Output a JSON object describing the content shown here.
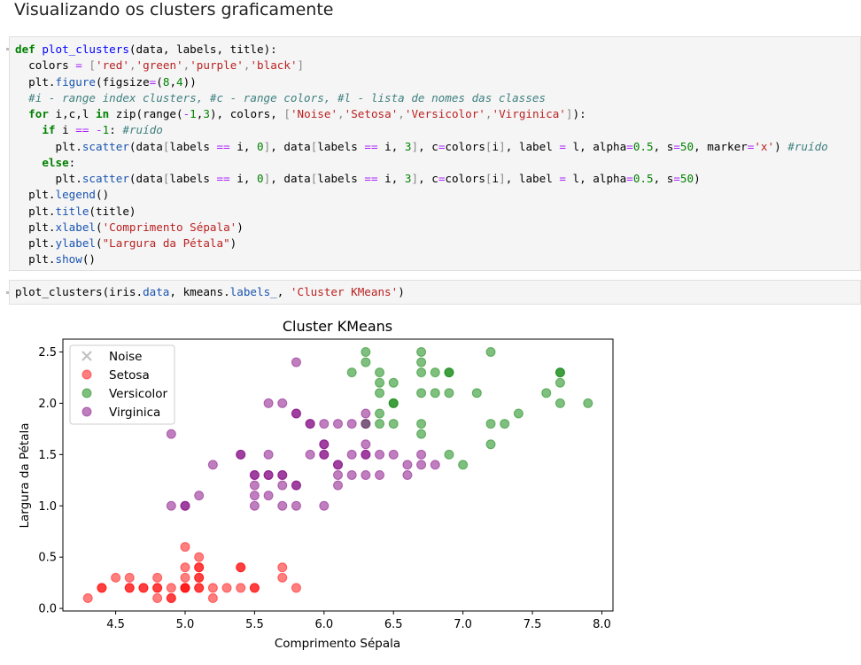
{
  "heading": "Visualizando os clusters graficamente",
  "cell1": {
    "lines": [
      [
        [
          "kw",
          "def "
        ],
        [
          "fn",
          "plot_clusters"
        ],
        [
          "",
          "(data, labels, title):"
        ]
      ],
      [
        [
          "",
          "  colors "
        ],
        [
          "op",
          "="
        ],
        [
          "br",
          " ["
        ],
        [
          "str",
          "'red'"
        ],
        [
          "br",
          ","
        ],
        [
          "str",
          "'green'"
        ],
        [
          "br",
          ","
        ],
        [
          "str",
          "'purple'"
        ],
        [
          "br",
          ","
        ],
        [
          "str",
          "'black'"
        ],
        [
          "br",
          "]"
        ]
      ],
      [
        [
          "",
          "  plt."
        ],
        [
          "attr",
          "figure"
        ],
        [
          "",
          "(figsize"
        ],
        [
          "op",
          "="
        ],
        [
          "",
          "("
        ],
        [
          "num",
          "8"
        ],
        [
          "",
          ","
        ],
        [
          "num",
          "4"
        ],
        [
          "",
          "))"
        ]
      ],
      [
        [
          "cm",
          "  #i - range index clusters, #c - range colors, #l - lista de nomes das classes"
        ]
      ],
      [
        [
          "kw",
          "  for "
        ],
        [
          "",
          "i,c,l "
        ],
        [
          "kw",
          "in "
        ],
        [
          "",
          "zip(range("
        ],
        [
          "op",
          "-"
        ],
        [
          "num",
          "1"
        ],
        [
          "",
          ","
        ],
        [
          "num",
          "3"
        ],
        [
          "",
          "), colors, "
        ],
        [
          "br",
          "["
        ],
        [
          "str",
          "'Noise'"
        ],
        [
          "br",
          ","
        ],
        [
          "str",
          "'Setosa'"
        ],
        [
          "br",
          ","
        ],
        [
          "str",
          "'Versicolor'"
        ],
        [
          "br",
          ","
        ],
        [
          "str",
          "'Virginica'"
        ],
        [
          "br",
          "]"
        ],
        [
          "",
          "):"
        ]
      ],
      [
        [
          "kw",
          "    if "
        ],
        [
          "",
          "i "
        ],
        [
          "op",
          "== -"
        ],
        [
          "num",
          "1"
        ],
        [
          "",
          ": "
        ],
        [
          "cm",
          "#ruído"
        ]
      ],
      [
        [
          "",
          "      plt."
        ],
        [
          "attr",
          "scatter"
        ],
        [
          "",
          "(data"
        ],
        [
          "br",
          "["
        ],
        [
          "",
          "labels "
        ],
        [
          "op",
          "=="
        ],
        [
          "",
          " i, "
        ],
        [
          "num",
          "0"
        ],
        [
          "br",
          "]"
        ],
        [
          "",
          ", data"
        ],
        [
          "br",
          "["
        ],
        [
          "",
          "labels "
        ],
        [
          "op",
          "=="
        ],
        [
          "",
          " i, "
        ],
        [
          "num",
          "3"
        ],
        [
          "br",
          "]"
        ],
        [
          "",
          ", c"
        ],
        [
          "op",
          "="
        ],
        [
          "",
          "colors"
        ],
        [
          "br",
          "["
        ],
        [
          "",
          "i"
        ],
        [
          "br",
          "]"
        ],
        [
          "",
          ", label "
        ],
        [
          "op",
          "="
        ],
        [
          "",
          " l, alpha"
        ],
        [
          "op",
          "="
        ],
        [
          "num",
          "0.5"
        ],
        [
          "",
          ", s"
        ],
        [
          "op",
          "="
        ],
        [
          "num",
          "50"
        ],
        [
          "",
          ", marker"
        ],
        [
          "op",
          "="
        ],
        [
          "str",
          "'x'"
        ],
        [
          "",
          ") "
        ],
        [
          "cm",
          "#ruído"
        ]
      ],
      [
        [
          "kw",
          "    else"
        ],
        [
          "",
          ":"
        ]
      ],
      [
        [
          "",
          "      plt."
        ],
        [
          "attr",
          "scatter"
        ],
        [
          "",
          "(data"
        ],
        [
          "br",
          "["
        ],
        [
          "",
          "labels "
        ],
        [
          "op",
          "=="
        ],
        [
          "",
          " i, "
        ],
        [
          "num",
          "0"
        ],
        [
          "br",
          "]"
        ],
        [
          "",
          ", data"
        ],
        [
          "br",
          "["
        ],
        [
          "",
          "labels "
        ],
        [
          "op",
          "=="
        ],
        [
          "",
          " i, "
        ],
        [
          "num",
          "3"
        ],
        [
          "br",
          "]"
        ],
        [
          "",
          ", c"
        ],
        [
          "op",
          "="
        ],
        [
          "",
          "colors"
        ],
        [
          "br",
          "["
        ],
        [
          "",
          "i"
        ],
        [
          "br",
          "]"
        ],
        [
          "",
          ", label "
        ],
        [
          "op",
          "="
        ],
        [
          "",
          " l, alpha"
        ],
        [
          "op",
          "="
        ],
        [
          "num",
          "0.5"
        ],
        [
          "",
          ", s"
        ],
        [
          "op",
          "="
        ],
        [
          "num",
          "50"
        ],
        [
          "",
          ")"
        ]
      ],
      [
        [
          "",
          "  plt."
        ],
        [
          "attr",
          "legend"
        ],
        [
          "",
          "()"
        ]
      ],
      [
        [
          "",
          "  plt."
        ],
        [
          "attr",
          "title"
        ],
        [
          "",
          "(title)"
        ]
      ],
      [
        [
          "",
          "  plt."
        ],
        [
          "attr",
          "xlabel"
        ],
        [
          "",
          "("
        ],
        [
          "str",
          "'Comprimento Sépala'"
        ],
        [
          "",
          ")"
        ]
      ],
      [
        [
          "",
          "  plt."
        ],
        [
          "attr",
          "ylabel"
        ],
        [
          "",
          "("
        ],
        [
          "str",
          "\"Largura da Pétala\""
        ],
        [
          "",
          ")"
        ]
      ],
      [
        [
          "",
          "  plt."
        ],
        [
          "attr",
          "show"
        ],
        [
          "",
          "()"
        ]
      ]
    ]
  },
  "cell2": {
    "lines": [
      [
        [
          "",
          "plot_clusters(iris."
        ],
        [
          "attr",
          "data"
        ],
        [
          "",
          ", kmeans."
        ],
        [
          "attr",
          "labels_"
        ],
        [
          "",
          ", "
        ],
        [
          "str",
          "'Cluster KMeans'"
        ],
        [
          "",
          ")"
        ]
      ]
    ]
  },
  "chart_data": {
    "type": "scatter",
    "title": "Cluster KMeans",
    "xlabel": "Comprimento Sépala",
    "ylabel": "Largura da Pétala",
    "xlim": [
      4.12,
      8.08
    ],
    "ylim": [
      -0.025,
      2.625
    ],
    "xticks": [
      "4.5",
      "5.0",
      "5.5",
      "6.0",
      "6.5",
      "7.0",
      "7.5",
      "8.0"
    ],
    "yticks": [
      "0.0",
      "0.5",
      "1.0",
      "1.5",
      "2.0",
      "2.5"
    ],
    "legend_position": "top-left",
    "colors": {
      "Noise": "#808080",
      "Setosa": "#ff0000",
      "Versicolor": "#008000",
      "Virginica": "#800080"
    },
    "series": [
      {
        "name": "Noise",
        "marker": "x",
        "points": []
      },
      {
        "name": "Setosa",
        "marker": "o",
        "points": [
          [
            4.3,
            0.1
          ],
          [
            4.4,
            0.2
          ],
          [
            4.4,
            0.2
          ],
          [
            4.5,
            0.3
          ],
          [
            4.6,
            0.2
          ],
          [
            4.6,
            0.2
          ],
          [
            4.6,
            0.3
          ],
          [
            4.7,
            0.2
          ],
          [
            4.7,
            0.2
          ],
          [
            4.8,
            0.1
          ],
          [
            4.8,
            0.2
          ],
          [
            4.8,
            0.2
          ],
          [
            4.8,
            0.3
          ],
          [
            4.9,
            0.1
          ],
          [
            4.9,
            0.1
          ],
          [
            4.9,
            0.2
          ],
          [
            5.0,
            0.2
          ],
          [
            5.0,
            0.2
          ],
          [
            5.0,
            0.2
          ],
          [
            5.0,
            0.3
          ],
          [
            5.0,
            0.4
          ],
          [
            5.0,
            0.6
          ],
          [
            5.1,
            0.2
          ],
          [
            5.1,
            0.2
          ],
          [
            5.1,
            0.3
          ],
          [
            5.1,
            0.3
          ],
          [
            5.1,
            0.4
          ],
          [
            5.1,
            0.4
          ],
          [
            5.1,
            0.5
          ],
          [
            5.2,
            0.1
          ],
          [
            5.2,
            0.2
          ],
          [
            5.3,
            0.2
          ],
          [
            5.4,
            0.2
          ],
          [
            5.4,
            0.4
          ],
          [
            5.4,
            0.4
          ],
          [
            5.5,
            0.2
          ],
          [
            5.5,
            0.2
          ],
          [
            5.7,
            0.3
          ],
          [
            5.7,
            0.4
          ],
          [
            5.8,
            0.2
          ]
        ]
      },
      {
        "name": "Versicolor",
        "marker": "o",
        "points": [
          [
            6.2,
            2.3
          ],
          [
            6.3,
            2.5
          ],
          [
            6.3,
            2.4
          ],
          [
            6.4,
            2.3
          ],
          [
            6.4,
            2.2
          ],
          [
            6.4,
            2.1
          ],
          [
            6.4,
            1.9
          ],
          [
            6.4,
            1.8
          ],
          [
            6.5,
            2.2
          ],
          [
            6.5,
            2.0
          ],
          [
            6.5,
            2.0
          ],
          [
            6.5,
            1.8
          ],
          [
            6.7,
            2.5
          ],
          [
            6.7,
            2.4
          ],
          [
            6.7,
            2.3
          ],
          [
            6.7,
            2.1
          ],
          [
            6.7,
            1.8
          ],
          [
            6.7,
            1.7
          ],
          [
            6.8,
            2.3
          ],
          [
            6.8,
            2.1
          ],
          [
            6.9,
            2.3
          ],
          [
            6.9,
            2.3
          ],
          [
            6.9,
            2.1
          ],
          [
            6.9,
            1.5
          ],
          [
            7.0,
            1.4
          ],
          [
            7.1,
            2.1
          ],
          [
            7.2,
            2.5
          ],
          [
            7.2,
            1.8
          ],
          [
            7.2,
            1.6
          ],
          [
            7.3,
            1.8
          ],
          [
            7.4,
            1.9
          ],
          [
            7.6,
            2.1
          ],
          [
            7.7,
            2.3
          ],
          [
            7.7,
            2.3
          ],
          [
            7.7,
            2.2
          ],
          [
            7.7,
            2.0
          ],
          [
            7.9,
            2.0
          ],
          [
            6.3,
            1.8
          ]
        ]
      },
      {
        "name": "Virginica",
        "marker": "o",
        "points": [
          [
            4.9,
            1.7
          ],
          [
            4.9,
            1.0
          ],
          [
            5.0,
            1.0
          ],
          [
            5.0,
            1.0
          ],
          [
            5.1,
            1.1
          ],
          [
            5.2,
            1.4
          ],
          [
            5.4,
            1.5
          ],
          [
            5.5,
            1.3
          ],
          [
            5.5,
            1.3
          ],
          [
            5.5,
            1.2
          ],
          [
            5.5,
            1.1
          ],
          [
            5.5,
            1.0
          ],
          [
            5.6,
            2.0
          ],
          [
            5.6,
            1.5
          ],
          [
            5.6,
            1.3
          ],
          [
            5.6,
            1.3
          ],
          [
            5.6,
            1.1
          ],
          [
            5.7,
            2.0
          ],
          [
            5.7,
            1.3
          ],
          [
            5.7,
            1.3
          ],
          [
            5.7,
            1.2
          ],
          [
            5.7,
            1.0
          ],
          [
            5.8,
            2.4
          ],
          [
            5.8,
            1.9
          ],
          [
            5.8,
            1.9
          ],
          [
            5.8,
            1.2
          ],
          [
            5.8,
            1.2
          ],
          [
            5.8,
            1.0
          ],
          [
            5.9,
            1.8
          ],
          [
            5.9,
            1.8
          ],
          [
            5.9,
            1.5
          ],
          [
            6.0,
            1.8
          ],
          [
            6.0,
            1.6
          ],
          [
            6.0,
            1.6
          ],
          [
            6.0,
            1.5
          ],
          [
            6.0,
            1.5
          ],
          [
            6.0,
            1.0
          ],
          [
            6.1,
            1.8
          ],
          [
            6.1,
            1.4
          ],
          [
            6.1,
            1.4
          ],
          [
            6.1,
            1.3
          ],
          [
            6.1,
            1.2
          ],
          [
            6.2,
            1.8
          ],
          [
            6.2,
            1.5
          ],
          [
            6.2,
            1.3
          ],
          [
            6.3,
            1.9
          ],
          [
            6.3,
            1.8
          ],
          [
            6.3,
            1.6
          ],
          [
            6.3,
            1.5
          ],
          [
            6.3,
            1.5
          ],
          [
            6.3,
            1.3
          ],
          [
            6.4,
            1.5
          ],
          [
            6.4,
            1.3
          ],
          [
            6.5,
            1.5
          ],
          [
            6.6,
            1.4
          ],
          [
            6.6,
            1.3
          ],
          [
            6.7,
            1.5
          ],
          [
            6.7,
            1.4
          ],
          [
            6.8,
            1.4
          ],
          [
            5.4,
            1.5
          ]
        ]
      }
    ]
  }
}
